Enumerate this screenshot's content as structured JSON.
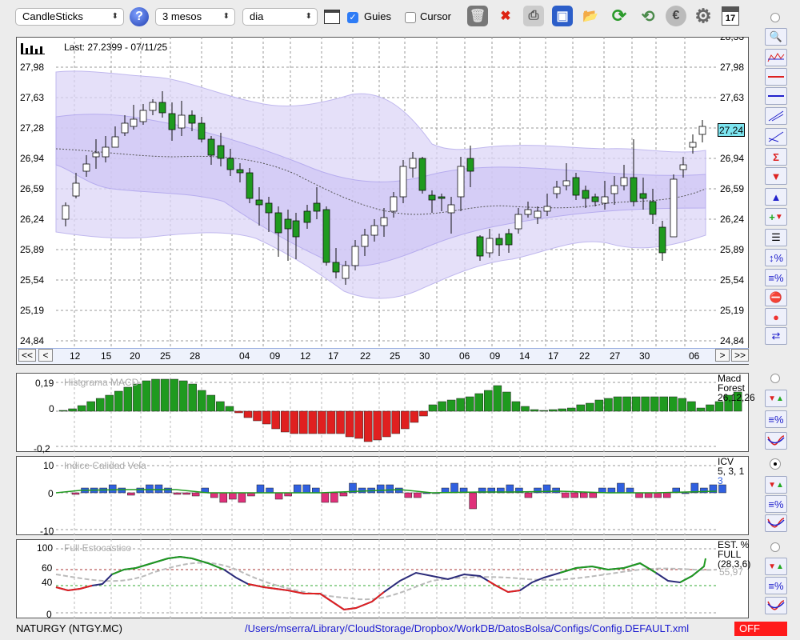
{
  "toolbar": {
    "chart_type": "CandleSticks",
    "help_label": "?",
    "period": "3 mesos",
    "interval": "dia",
    "guies_label": "Guies",
    "guies_checked": true,
    "cursor_label": "Cursor",
    "cursor_checked": false,
    "calendar_day": "17"
  },
  "price_panel": {
    "last_label": "Last: 27.2399 - 07/11/25",
    "current_price": "27,24",
    "y_labels": [
      "27,98",
      "27,63",
      "27,28",
      "26,94",
      "26,59",
      "26,24",
      "25,89",
      "25,54",
      "25,19",
      "24,84"
    ],
    "y_top_partial": "28,33",
    "x_labels": [
      "12",
      "15",
      "20",
      "25",
      "28",
      "04",
      "09",
      "12",
      "17",
      "22",
      "25",
      "30",
      "06",
      "09",
      "14",
      "17",
      "22",
      "27",
      "30",
      "06"
    ],
    "nav": {
      "first": "<<",
      "prev": "<",
      "next": ">",
      "last": ">>"
    }
  },
  "macd_panel": {
    "title": "Histgrama MACD",
    "legend": [
      "Macd",
      "Forest",
      "26,12,26"
    ],
    "y_labels": [
      "0,19",
      "0",
      "-0,2"
    ]
  },
  "icv_panel": {
    "title": "Indice Calidad Vela",
    "legend": [
      "ICV",
      "5, 3, 1"
    ],
    "legend_blue": "3",
    "y_labels": [
      "10",
      "0",
      "-10"
    ]
  },
  "stoch_panel": {
    "title": "Full Estocastico",
    "legend": [
      "EST. %",
      "FULL",
      "(28,3,6)"
    ],
    "value": "55,97",
    "y_labels": [
      "100",
      "60",
      "40",
      "0"
    ]
  },
  "status": {
    "ticker": "NATURGY (NTGY.MC)",
    "path": "/Users/mserra/Library/CloudStorage/Dropbox/WorkDB/DatosBolsa/Configs/Config.DEFAULT.xml",
    "off_label": "OFF"
  },
  "colors": {
    "up": "#1f9a1f",
    "down": "#e02020",
    "blue": "#3060e0",
    "pink": "#e0307a",
    "band": "#dcd6f7",
    "navy": "#2b2b7a"
  }
}
